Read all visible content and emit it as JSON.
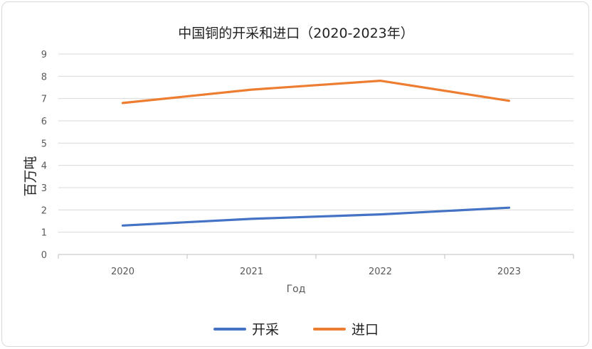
{
  "chart_data": {
    "type": "line",
    "title": "中国铜的开采和进口（2020-2023年）",
    "xlabel": "Год",
    "ylabel": "百万吨",
    "categories": [
      "2020",
      "2021",
      "2022",
      "2023"
    ],
    "ylim": [
      0,
      9
    ],
    "yticks": [
      "0",
      "1",
      "2",
      "3",
      "4",
      "5",
      "6",
      "7",
      "8",
      "9"
    ],
    "grid": true,
    "legend_position": "bottom",
    "series": [
      {
        "name": "开采",
        "color": "#4472C4",
        "values": [
          1.3,
          1.6,
          1.8,
          2.1
        ]
      },
      {
        "name": "进口",
        "color": "#ED7D31",
        "values": [
          6.8,
          7.4,
          7.8,
          6.9
        ]
      }
    ]
  }
}
